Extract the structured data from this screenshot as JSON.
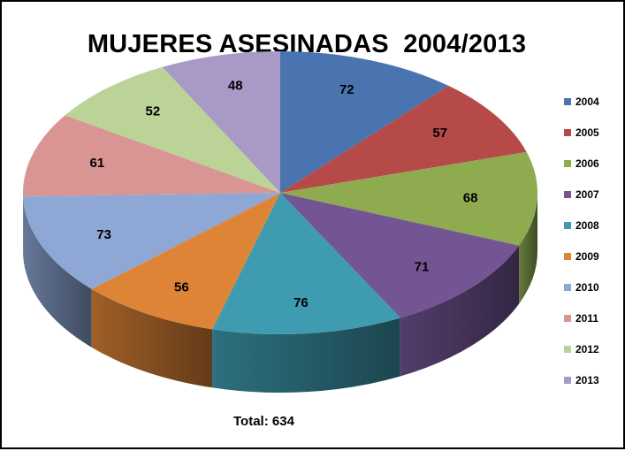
{
  "chart_data": {
    "type": "pie",
    "title": "MUJERES ASESINADAS  2004/2013",
    "footer": "Total: 634",
    "legend_position": "right",
    "categories": [
      "2004",
      "2005",
      "2006",
      "2007",
      "2008",
      "2009",
      "2010",
      "2011",
      "2012",
      "2013"
    ],
    "values": [
      72,
      57,
      68,
      71,
      76,
      56,
      73,
      61,
      52,
      48
    ],
    "colors": [
      "#4a74b0",
      "#b64a48",
      "#8eab4f",
      "#735594",
      "#3f9bb0",
      "#de8436",
      "#8ea7d4",
      "#d99594",
      "#bcd397",
      "#a899c6"
    ],
    "three_d": true
  }
}
